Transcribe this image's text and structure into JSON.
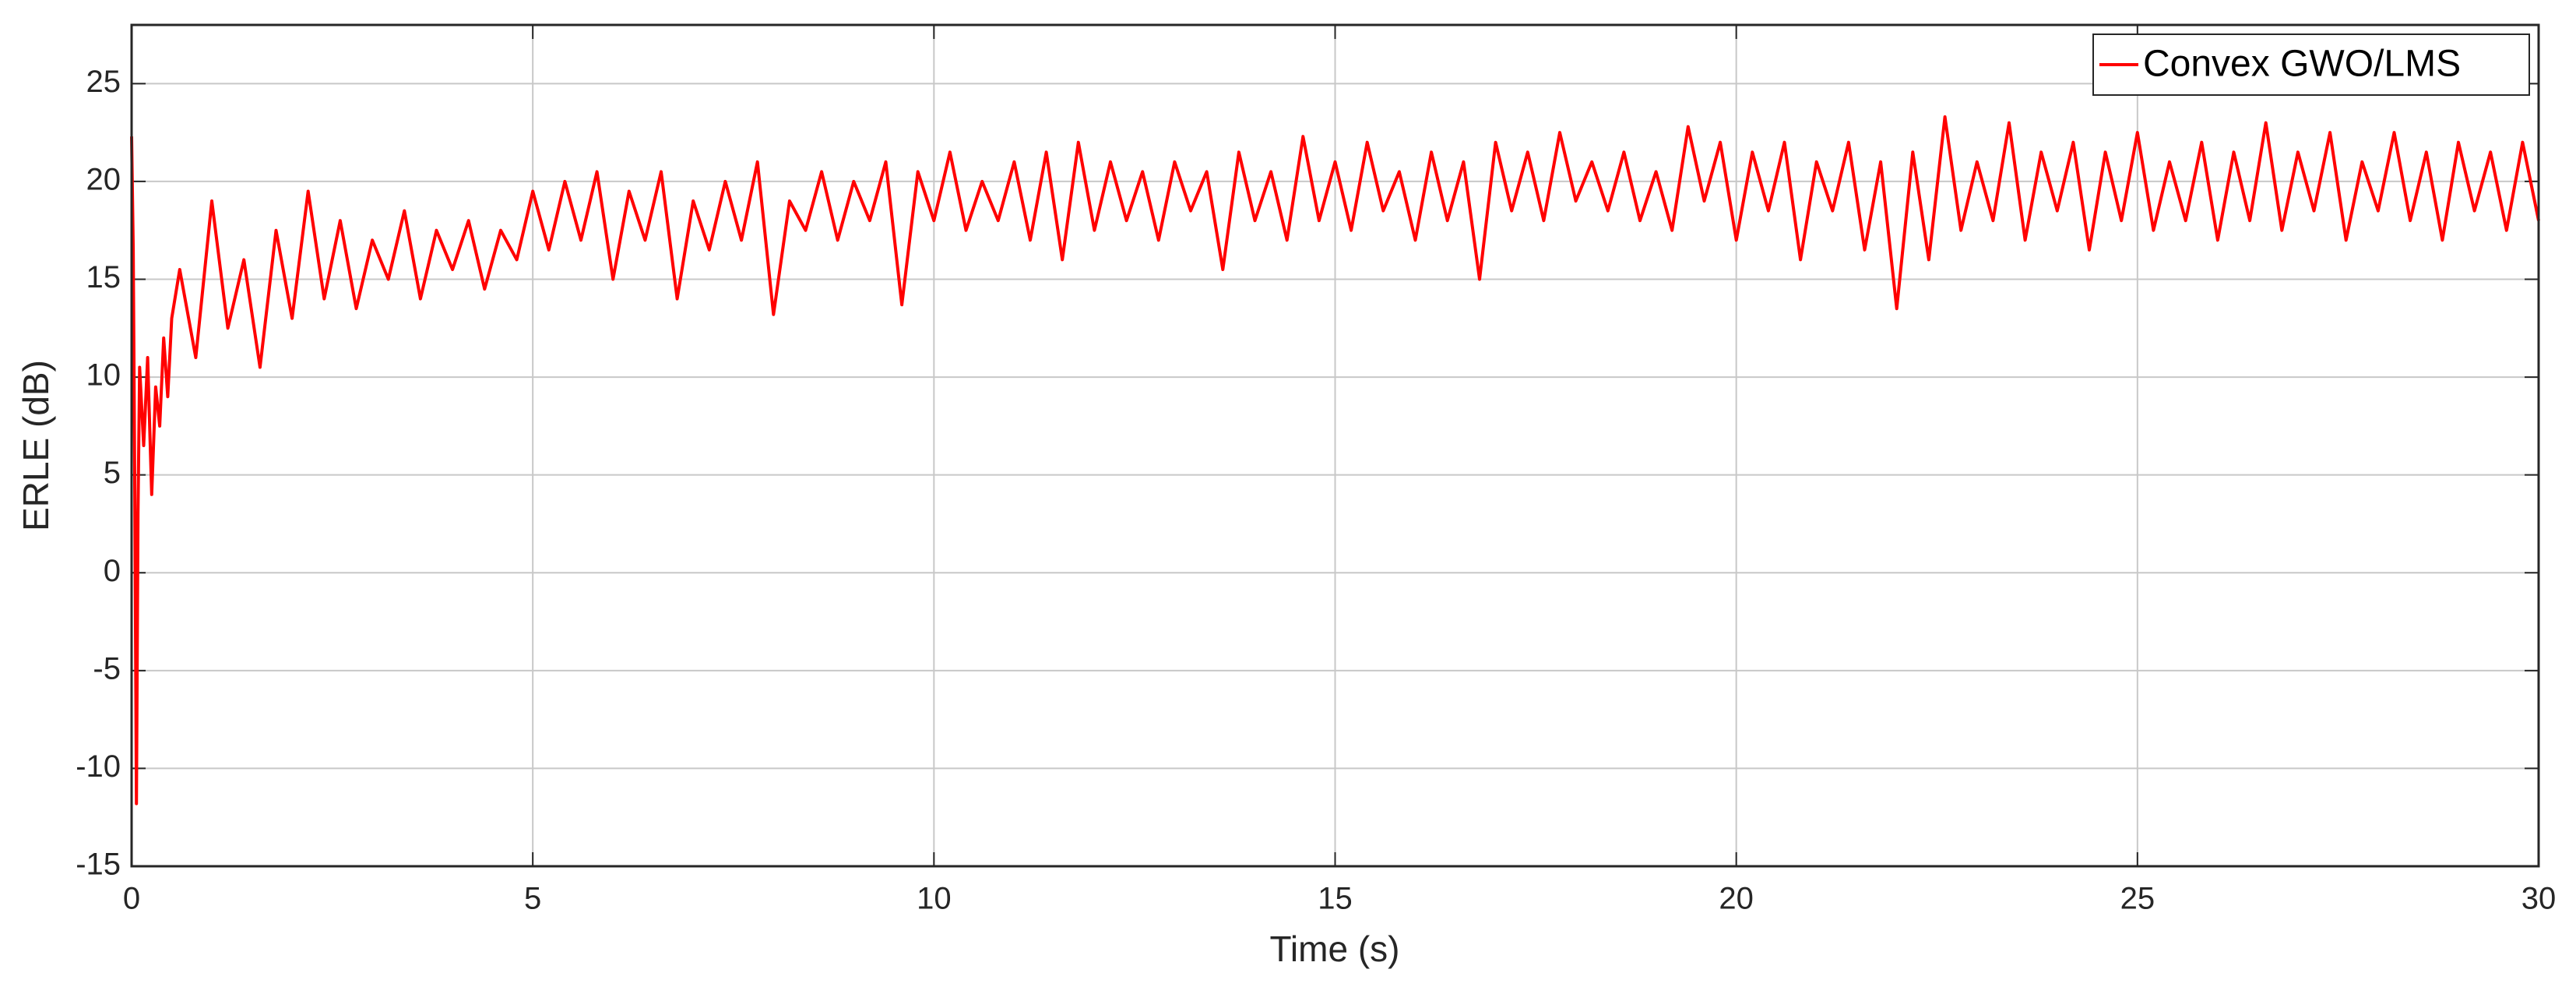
{
  "chart_data": {
    "type": "line",
    "xlabel": "Time (s)",
    "ylabel": "ERLE (dB)",
    "xlim": [
      0,
      30
    ],
    "xticks": [
      0,
      5,
      10,
      15,
      20,
      25,
      30
    ],
    "ylim": [
      -15,
      28
    ],
    "yticks": [
      -15,
      -10,
      -5,
      0,
      5,
      10,
      15,
      20,
      25
    ],
    "grid": true,
    "legend": "upper right",
    "x": [
      0,
      0.02,
      0.04,
      0.06,
      0.08,
      0.1,
      0.15,
      0.2,
      0.25,
      0.3,
      0.35,
      0.4,
      0.45,
      0.5,
      0.6,
      0.8,
      1,
      1.2,
      1.4,
      1.6,
      1.8,
      2,
      2.2,
      2.4,
      2.6,
      2.8,
      3,
      3.2,
      3.4,
      3.6,
      3.8,
      4,
      4.2,
      4.4,
      4.6,
      4.8,
      5,
      5.2,
      5.4,
      5.6,
      5.8,
      6,
      6.2,
      6.4,
      6.6,
      6.8,
      7,
      7.2,
      7.4,
      7.6,
      7.8,
      8,
      8.2,
      8.4,
      8.6,
      8.8,
      9,
      9.2,
      9.4,
      9.6,
      9.8,
      10,
      10.2,
      10.4,
      10.6,
      10.8,
      11,
      11.2,
      11.4,
      11.6,
      11.8,
      12,
      12.2,
      12.4,
      12.6,
      12.8,
      13,
      13.2,
      13.4,
      13.6,
      13.8,
      14,
      14.2,
      14.4,
      14.6,
      14.8,
      15,
      15.2,
      15.4,
      15.6,
      15.8,
      16,
      16.2,
      16.4,
      16.6,
      16.8,
      17,
      17.2,
      17.4,
      17.6,
      17.8,
      18,
      18.2,
      18.4,
      18.6,
      18.8,
      19,
      19.2,
      19.4,
      19.6,
      19.8,
      20,
      20.2,
      20.4,
      20.6,
      20.8,
      21,
      21.2,
      21.4,
      21.6,
      21.8,
      22,
      22.2,
      22.4,
      22.6,
      22.8,
      23,
      23.2,
      23.4,
      23.6,
      23.8,
      24,
      24.2,
      24.4,
      24.6,
      24.8,
      25,
      25.2,
      25.4,
      25.6,
      25.8,
      26,
      26.2,
      26.4,
      26.6,
      26.8,
      27,
      27.2,
      27.4,
      27.6,
      27.8,
      28,
      28.2,
      28.4,
      28.6,
      28.8,
      29,
      29.2,
      29.4,
      29.6,
      29.8,
      30
    ],
    "series": [
      {
        "name": "Convex GWO/LMS",
        "color": "#ff0000",
        "values": [
          22.3,
          16.5,
          4,
          -11.8,
          3,
          10.5,
          6.5,
          11,
          4,
          9.5,
          7.5,
          12,
          9,
          13,
          15.5,
          11,
          19,
          12.5,
          16,
          10.5,
          17.5,
          13,
          19.5,
          14,
          18,
          13.5,
          17,
          15,
          18.5,
          14,
          17.5,
          15.5,
          18,
          14.5,
          17.5,
          16,
          19.5,
          16.5,
          20,
          17,
          20.5,
          15,
          19.5,
          17,
          20.5,
          14,
          19,
          16.5,
          20,
          17,
          21,
          13.2,
          19,
          17.5,
          20.5,
          17,
          20,
          18,
          21,
          13.7,
          20.5,
          18,
          21.5,
          17.5,
          20,
          18,
          21,
          17,
          21.5,
          16,
          22,
          17.5,
          21,
          18,
          20.5,
          17,
          21,
          18.5,
          20.5,
          15.5,
          21.5,
          18,
          20.5,
          17,
          22.3,
          18,
          21,
          17.5,
          22,
          18.5,
          20.5,
          17,
          21.5,
          18,
          21,
          15,
          22,
          18.5,
          21.5,
          18,
          22.5,
          19,
          21,
          18.5,
          21.5,
          18,
          20.5,
          17.5,
          22.8,
          19,
          22,
          17,
          21.5,
          18.5,
          22,
          16,
          21,
          18.5,
          22,
          16.5,
          21,
          13.5,
          21.5,
          16,
          23.3,
          17.5,
          21,
          18,
          23,
          17,
          21.5,
          18.5,
          22,
          16.5,
          21.5,
          18,
          22.5,
          17.5,
          21,
          18,
          22,
          17,
          21.5,
          18,
          23,
          17.5,
          21.5,
          18.5,
          22.5,
          17,
          21,
          18.5,
          22.5,
          18,
          21.5,
          17,
          22,
          18.5,
          21.5,
          17.5,
          22,
          18
        ]
      }
    ]
  }
}
